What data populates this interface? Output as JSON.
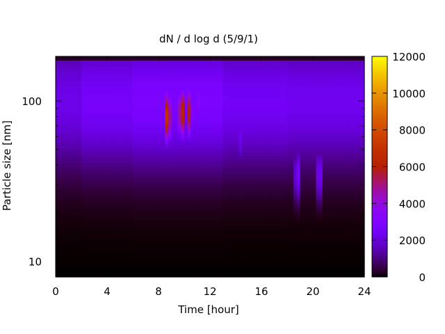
{
  "chart_data": {
    "type": "heatmap",
    "title": "dN / d log d (5/9/1)",
    "xlabel": "Time [hour]",
    "ylabel": "Particle size [nm]",
    "x_range": [
      0,
      24
    ],
    "x_ticks": [
      0,
      4,
      8,
      12,
      16,
      20,
      24
    ],
    "y_scale": "log",
    "y_range": [
      8,
      190
    ],
    "y_ticks": [
      10,
      100
    ],
    "colorbar": {
      "range": [
        0,
        12000
      ],
      "ticks": [
        0,
        2000,
        4000,
        6000,
        8000,
        10000,
        12000
      ],
      "colormap": "gnuplot (black-purple-red-yellow)"
    },
    "background_level": 2600,
    "background_peak_diameter_nm": 100,
    "features": [
      {
        "time_hour": 8.7,
        "diameter_nm": 80,
        "value": 7500
      },
      {
        "time_hour": 9.8,
        "diameter_nm": 85,
        "value": 6800
      },
      {
        "time_hour": 10.4,
        "diameter_nm": 85,
        "value": 6000
      },
      {
        "time_hour": 11.2,
        "diameter_nm": 100,
        "value": 3500
      },
      {
        "time_hour": 14.3,
        "diameter_nm": 60,
        "value": 2500
      },
      {
        "time_hour": 18.8,
        "diameter_nm": 35,
        "value": 2800
      },
      {
        "time_hour": 20.5,
        "diameter_nm": 35,
        "value": 2800
      }
    ],
    "grid": false
  }
}
